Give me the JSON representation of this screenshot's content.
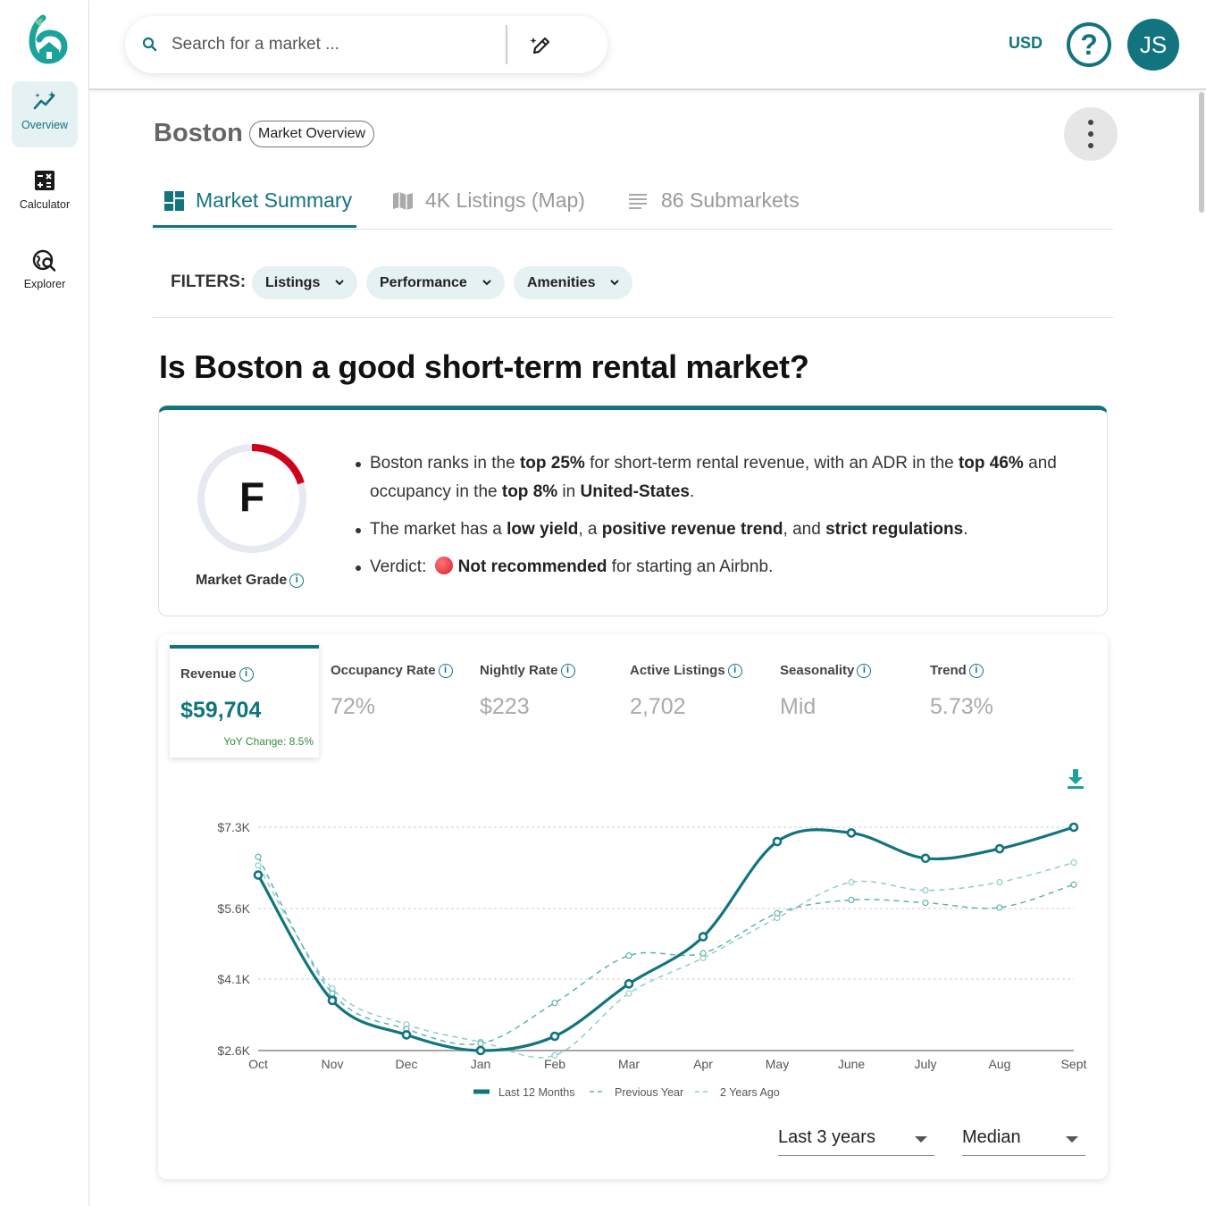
{
  "sidebar": {
    "items": [
      {
        "label": "Overview",
        "icon": "trend-sparkle-icon",
        "active": true
      },
      {
        "label": "Calculator",
        "icon": "calculator-icon",
        "active": false
      },
      {
        "label": "Explorer",
        "icon": "globe-search-icon",
        "active": false
      }
    ]
  },
  "topbar": {
    "search_placeholder": "Search for a market ...",
    "currency": "USD",
    "help": "?",
    "avatar": "JS"
  },
  "header": {
    "city": "Boston",
    "badge": "Market Overview"
  },
  "tabs": [
    {
      "label": "Market Summary",
      "icon": "dashboard-icon",
      "active": true
    },
    {
      "label": "4K Listings (Map)",
      "icon": "map-icon",
      "active": false
    },
    {
      "label": "86 Submarkets",
      "icon": "list-icon",
      "active": false
    }
  ],
  "filters": {
    "label": "FILTERS:",
    "chips": [
      "Listings",
      "Performance",
      "Amenities"
    ]
  },
  "question": "Is Boston a good short-term rental market?",
  "grade": {
    "letter": "F",
    "label": "Market Grade"
  },
  "summary": {
    "b1": [
      "Boston ranks in the ",
      "top 25%",
      " for short-term rental revenue, with an ADR in the ",
      "top 46%",
      " and occupancy in the ",
      "top 8%",
      " in ",
      "United-States",
      "."
    ],
    "b2": [
      "The market has a ",
      "low yield",
      ", a ",
      "positive revenue trend",
      ", and ",
      "strict regulations",
      "."
    ],
    "b3": [
      "Verdict: ",
      "Not recommended",
      " for starting an Airbnb."
    ]
  },
  "metrics": [
    {
      "label": "Revenue",
      "value": "$59,704",
      "yoy": "YoY Change: 8.5%",
      "active": true
    },
    {
      "label": "Occupancy Rate",
      "value": "72%"
    },
    {
      "label": "Nightly Rate",
      "value": "$223"
    },
    {
      "label": "Active Listings",
      "value": "2,702"
    },
    {
      "label": "Seasonality",
      "value": "Mid"
    },
    {
      "label": "Trend",
      "value": "5.73%"
    }
  ],
  "colors": {
    "accent": "#11747f",
    "series_main": "#11747f",
    "series_prev": "#5fb3ae",
    "series_2y": "#8ccfca",
    "grade_arc": "#d0021b"
  },
  "chart_data": {
    "type": "line",
    "categories": [
      "Oct",
      "Nov",
      "Dec",
      "Jan",
      "Feb",
      "Mar",
      "Apr",
      "May",
      "June",
      "July",
      "Aug",
      "Sept"
    ],
    "y_ticks": [
      "$2.6K",
      "$4.1K",
      "$5.6K",
      "$7.3K"
    ],
    "y_tick_values": [
      2600,
      4100,
      5600,
      7300
    ],
    "ylim": [
      2600,
      7300
    ],
    "grid": true,
    "legend_position": "bottom",
    "series": [
      {
        "name": "Last 12 Months",
        "values": [
          6300,
          3650,
          2930,
          2600,
          2900,
          4000,
          5000,
          7000,
          7180,
          6650,
          6850,
          7300
        ],
        "style": "solid"
      },
      {
        "name": "Previous Year",
        "values": [
          6680,
          3800,
          3050,
          2750,
          3600,
          4600,
          4650,
          5500,
          5780,
          5720,
          5620,
          6100
        ],
        "style": "dashed"
      },
      {
        "name": "2 Years Ago",
        "values": [
          6500,
          3900,
          3150,
          2780,
          2500,
          3800,
          4550,
          5400,
          6150,
          5980,
          6150,
          6560
        ],
        "style": "dashed"
      }
    ]
  },
  "controls": {
    "range": "Last 3 years",
    "stat": "Median"
  }
}
